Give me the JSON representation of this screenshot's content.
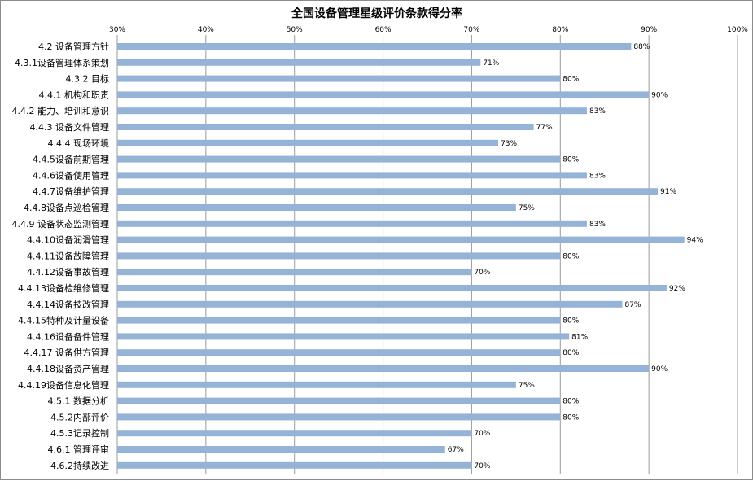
{
  "chart_data": {
    "type": "bar",
    "orientation": "horizontal",
    "title": "全国设备管理星级评价条款得分率",
    "xlabel": "",
    "ylabel": "",
    "xlim": [
      0.3,
      1.0
    ],
    "x_ticks": [
      "30%",
      "40%",
      "50%",
      "60%",
      "70%",
      "80%",
      "90%",
      "100%"
    ],
    "x_axis_position": "top",
    "grid": true,
    "legend": "none",
    "bar_color": "#95b3d7",
    "categories": [
      "4.2 设备管理方针",
      "4.3.1设备管理体系策划",
      "4.3.2 目标",
      "4.4.1 机构和职责",
      "4.4.2 能力、培训和意识",
      "4.4.3 设备文件管理",
      "4.4.4 现场环境",
      "4.4.5设备前期管理",
      "4.4.6设备使用管理",
      "4.4.7设备维护管理",
      "4.4.8设备点巡检管理",
      "4.4.9 设备状态监测管理",
      "4.4.10设备润滑管理",
      "4.4.11设备故障管理",
      "4.4.12设备事故管理",
      "4.4.13设备检维修管理",
      "4.4.14设备技改管理",
      "4.4.15特种及计量设备",
      "4.4.16设备备件管理",
      "4.4.17 设备供方管理",
      "4.4.18设备资产管理",
      "4.4.19设备信息化管理",
      "4.5.1 数据分析",
      "4.5.2内部评价",
      "4.5.3记录控制",
      "4.6.1 管理评审",
      "4.6.2持续改进"
    ],
    "values": [
      0.88,
      0.71,
      0.8,
      0.9,
      0.83,
      0.77,
      0.73,
      0.8,
      0.83,
      0.91,
      0.75,
      0.83,
      0.94,
      0.8,
      0.7,
      0.92,
      0.87,
      0.8,
      0.81,
      0.8,
      0.9,
      0.75,
      0.8,
      0.8,
      0.7,
      0.67,
      0.7
    ],
    "data_labels": [
      "88%",
      "71%",
      "80%",
      "90%",
      "83%",
      "77%",
      "73%",
      "80%",
      "83%",
      "91%",
      "75%",
      "83%",
      "94%",
      "80%",
      "70%",
      "92%",
      "87%",
      "80%",
      "81%",
      "80%",
      "90%",
      "75%",
      "80%",
      "80%",
      "70%",
      "67%",
      "70%"
    ]
  }
}
